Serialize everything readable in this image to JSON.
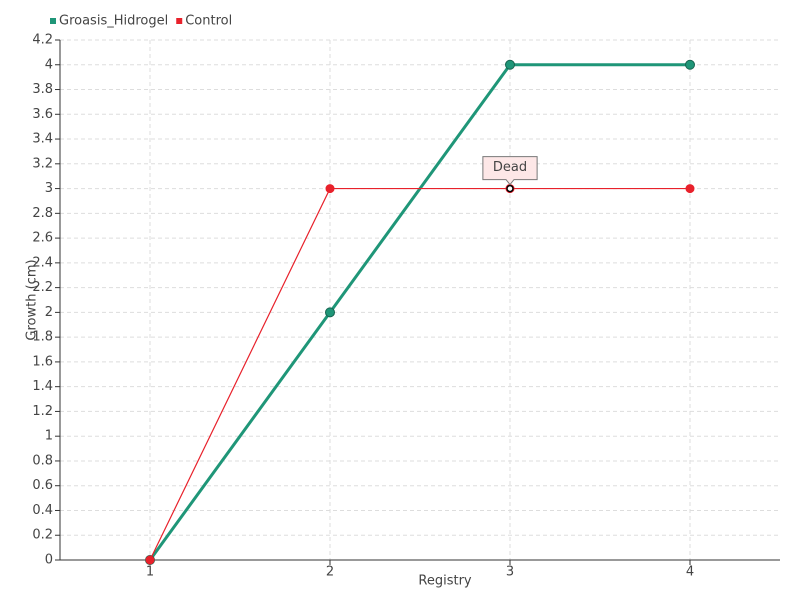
{
  "chart_data": {
    "type": "line",
    "x": [
      1,
      2,
      3,
      4
    ],
    "series": [
      {
        "name": "Groasis_Hidrogel",
        "color": "#1f9678",
        "values": [
          0,
          2,
          4,
          4
        ]
      },
      {
        "name": "Control",
        "color": "#e8212b",
        "values": [
          0,
          3,
          3,
          3
        ]
      }
    ],
    "xlabel": "Registry",
    "ylabel": "Growth (cm)",
    "xlim": [
      0.5,
      4.5
    ],
    "xticks": [
      1,
      2,
      3,
      4
    ],
    "ylim": [
      0,
      4.2
    ],
    "yticks": [
      0,
      0.2,
      0.4,
      0.6,
      0.8,
      1,
      1.2,
      1.4,
      1.6,
      1.8,
      2,
      2.2,
      2.4,
      2.6,
      2.8,
      3,
      3.2,
      3.4,
      3.6,
      3.8,
      4,
      4.2
    ],
    "grid": true,
    "legend": "top-left",
    "annotations": [
      {
        "text": "Dead",
        "x": 3,
        "y": 3
      }
    ]
  }
}
